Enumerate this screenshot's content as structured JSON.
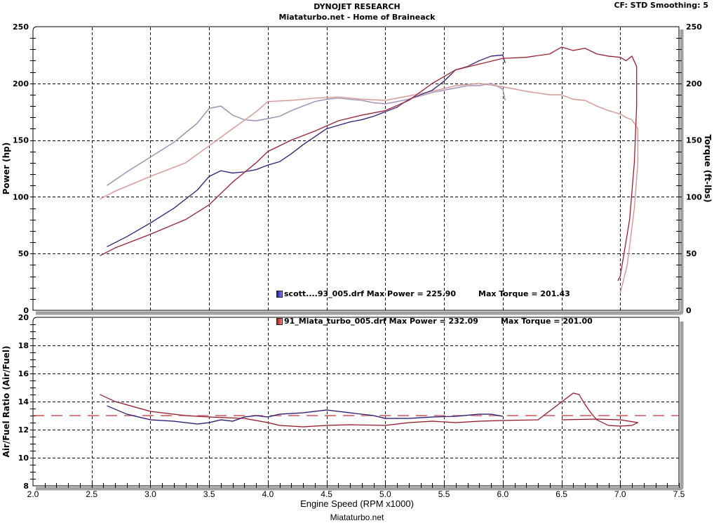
{
  "header": {
    "title": "DYNOJET RESEARCH",
    "subtitle": "Miataturbo.net - Home of Braineack",
    "cf_info": "CF: STD  Smoothing: 5"
  },
  "footer": {
    "text": "Miataturbo.net"
  },
  "legend": {
    "items": [
      {
        "name": "scott....93_005.drf",
        "power_label": "Max Power = 225.90",
        "torque_label": "Max Torque = 201.43",
        "color": "#1a1aa8"
      },
      {
        "name": "91_Miata_turbo_005.drf",
        "power_label": "Max Power = 232.09",
        "torque_label": "Max Torque = 201.00",
        "color": "#b81818"
      }
    ]
  },
  "colors": {
    "run1_power": "#1c1470",
    "run1_torque": "#8a86b4",
    "run2_power": "#8c1c30",
    "run2_torque": "#c89494",
    "afr_run1": "#1c1470",
    "afr_run2": "#8c1c30",
    "afr_target": "#c03030",
    "frame_shadow": "#a0a0a0"
  },
  "chart_data": [
    {
      "type": "line",
      "title": "DYNOJET RESEARCH - Miataturbo.net - Home of Braineack",
      "xlabel": "Engine Speed (RPM x1000)",
      "ylabel": "Power (hp)",
      "ylabel_right": "Torque (ft-lbs)",
      "xlim": [
        2.0,
        7.5
      ],
      "ylim": [
        0,
        250
      ],
      "ylim_right": [
        0,
        250
      ],
      "x_ticks": [
        "2.0",
        "2.5",
        "3.0",
        "3.5",
        "4.0",
        "4.5",
        "5.0",
        "5.5",
        "6.0",
        "6.5",
        "7.0",
        "7.5"
      ],
      "y_ticks": [
        "0",
        "50",
        "100",
        "150",
        "200",
        "250"
      ],
      "y_ticks_right": [
        "0",
        "50",
        "100",
        "150",
        "200",
        "250"
      ],
      "grid": true,
      "legend_position": "inside-bottom-center",
      "series": [
        {
          "name": "scott....93_005.drf Power",
          "axis": "left",
          "x": [
            2.63,
            2.8,
            3.0,
            3.2,
            3.4,
            3.5,
            3.6,
            3.7,
            3.8,
            3.9,
            4.0,
            4.1,
            4.2,
            4.3,
            4.4,
            4.5,
            4.6,
            4.7,
            4.8,
            4.9,
            5.0,
            5.1,
            5.2,
            5.3,
            5.4,
            5.5,
            5.6,
            5.7,
            5.8,
            5.9,
            6.0,
            6.02
          ],
          "values": [
            56,
            65,
            77,
            90,
            106,
            118,
            123,
            121,
            122,
            124,
            128,
            131,
            138,
            146,
            153,
            160,
            163,
            166,
            168,
            171,
            175,
            179,
            186,
            190,
            194,
            202,
            212,
            215,
            220,
            224,
            225,
            218
          ]
        },
        {
          "name": "scott....93_005.drf Torque",
          "axis": "right",
          "x": [
            2.63,
            2.8,
            3.0,
            3.2,
            3.4,
            3.5,
            3.6,
            3.7,
            3.8,
            3.9,
            4.0,
            4.1,
            4.2,
            4.3,
            4.4,
            4.5,
            4.6,
            4.7,
            4.8,
            4.9,
            5.0,
            5.1,
            5.2,
            5.3,
            5.4,
            5.5,
            5.6,
            5.7,
            5.8,
            5.9,
            6.0,
            6.02
          ],
          "values": [
            110,
            122,
            135,
            148,
            165,
            178,
            180,
            172,
            168,
            167,
            169,
            171,
            176,
            180,
            184,
            186,
            187,
            186,
            185,
            183,
            182,
            184,
            186,
            189,
            192,
            194,
            196,
            198,
            198,
            200,
            195,
            185
          ]
        },
        {
          "name": "91_Miata_turbo_005.drf Power",
          "axis": "left",
          "x": [
            2.57,
            2.7,
            3.0,
            3.3,
            3.5,
            3.7,
            3.9,
            4.0,
            4.2,
            4.4,
            4.6,
            4.8,
            5.0,
            5.2,
            5.4,
            5.6,
            5.8,
            6.0,
            6.2,
            6.4,
            6.5,
            6.6,
            6.7,
            6.8,
            6.9,
            7.0,
            7.05,
            7.1,
            7.14,
            7.14,
            7.12,
            7.08,
            7.0,
            6.98
          ],
          "values": [
            48,
            55,
            67,
            80,
            93,
            113,
            130,
            140,
            150,
            158,
            167,
            172,
            176,
            185,
            200,
            212,
            217,
            222,
            223,
            226,
            232,
            229,
            231,
            226,
            224,
            223,
            220,
            224,
            215,
            180,
            130,
            80,
            30,
            26
          ]
        },
        {
          "name": "91_Miata_turbo_005.drf Torque",
          "axis": "right",
          "x": [
            2.57,
            2.7,
            3.0,
            3.3,
            3.5,
            3.7,
            3.9,
            4.0,
            4.2,
            4.4,
            4.6,
            4.8,
            5.0,
            5.2,
            5.4,
            5.6,
            5.8,
            6.0,
            6.2,
            6.4,
            6.5,
            6.6,
            6.7,
            6.8,
            6.9,
            7.0,
            7.05,
            7.1,
            7.15,
            7.15,
            7.12,
            7.06,
            7.0
          ],
          "values": [
            98,
            105,
            118,
            130,
            145,
            160,
            175,
            184,
            185,
            187,
            188,
            186,
            185,
            189,
            193,
            198,
            200,
            197,
            193,
            190,
            190,
            186,
            185,
            180,
            176,
            173,
            170,
            168,
            160,
            130,
            90,
            40,
            15
          ]
        }
      ],
      "annotations": [
        "scott....93_005.drf Max Power = 225.90     Max Torque = 201.43",
        "91_Miata_turbo_005.drf Max Power = 232.09     Max Torque = 201.00"
      ]
    },
    {
      "type": "line",
      "xlabel": "Engine Speed (RPM x1000)",
      "ylabel": "Air/Fuel Ratio (Air/Fuel)",
      "xlim": [
        2.0,
        7.5
      ],
      "ylim": [
        8,
        20
      ],
      "x_ticks": [
        "2.0",
        "2.5",
        "3.0",
        "3.5",
        "4.0",
        "4.5",
        "5.0",
        "5.5",
        "6.0",
        "6.5",
        "7.0",
        "7.5"
      ],
      "y_ticks": [
        "8",
        "10",
        "12",
        "14",
        "16",
        "18",
        "20"
      ],
      "grid": true,
      "series": [
        {
          "name": "scott....93_005.drf AFR",
          "x": [
            2.63,
            2.8,
            3.0,
            3.2,
            3.4,
            3.5,
            3.6,
            3.7,
            3.8,
            3.9,
            4.0,
            4.1,
            4.3,
            4.5,
            4.7,
            4.9,
            5.0,
            5.2,
            5.4,
            5.6,
            5.8,
            5.9,
            6.0
          ],
          "values": [
            13.7,
            13.1,
            12.7,
            12.6,
            12.4,
            12.5,
            12.7,
            12.6,
            12.9,
            13.0,
            12.9,
            13.1,
            13.2,
            13.4,
            13.2,
            13.0,
            12.8,
            12.8,
            12.9,
            12.95,
            13.1,
            13.1,
            12.95
          ]
        },
        {
          "name": "91_Miata_turbo_005.drf AFR",
          "x": [
            2.57,
            2.7,
            3.0,
            3.3,
            3.5,
            3.8,
            4.0,
            4.1,
            4.3,
            4.5,
            4.7,
            5.0,
            5.2,
            5.4,
            5.6,
            5.8,
            6.0,
            6.3,
            6.6,
            6.65,
            6.7,
            6.75,
            6.8,
            6.9,
            7.0,
            7.1,
            7.15,
            7.0,
            6.8,
            6.5
          ],
          "values": [
            14.5,
            14.0,
            13.3,
            13.0,
            12.9,
            12.8,
            12.5,
            12.3,
            12.2,
            12.3,
            12.35,
            12.3,
            12.5,
            12.6,
            12.5,
            12.6,
            12.65,
            12.7,
            14.6,
            14.5,
            13.8,
            13.2,
            12.7,
            12.3,
            12.25,
            12.3,
            12.5,
            12.7,
            12.75,
            12.7
          ]
        },
        {
          "name": "Target AFR",
          "x": [
            2.0,
            7.5
          ],
          "values": [
            13.0,
            13.0
          ]
        }
      ]
    }
  ],
  "axes": {
    "top": {
      "ylabel": "Power (hp)",
      "ylabel_right": "Torque (ft-lbs)",
      "y_ticks": [
        "250",
        "200",
        "150",
        "100",
        "50",
        "0"
      ]
    },
    "bottom": {
      "ylabel": "Air/Fuel Ratio (Air/Fuel)",
      "y_ticks": [
        "20",
        "18",
        "16",
        "14",
        "12",
        "10",
        "8"
      ]
    },
    "x": {
      "label": "Engine Speed (RPM x1000)",
      "ticks": [
        "2.0",
        "2.5",
        "3.0",
        "3.5",
        "4.0",
        "4.5",
        "5.0",
        "5.5",
        "6.0",
        "6.5",
        "7.0",
        "7.5"
      ]
    }
  }
}
